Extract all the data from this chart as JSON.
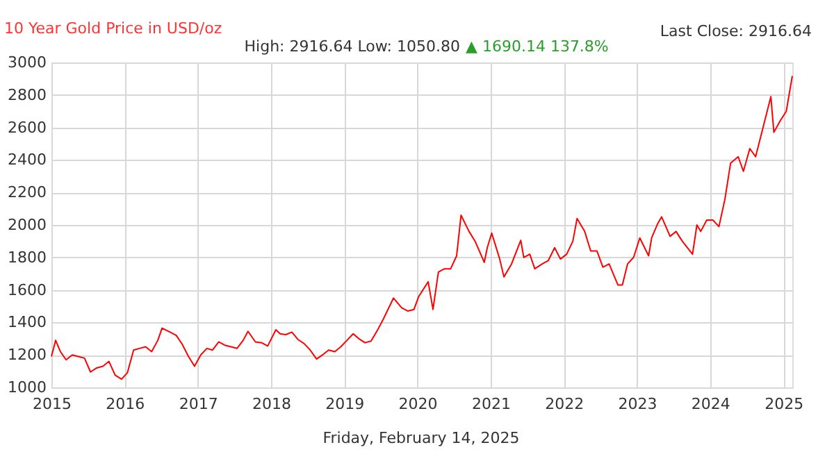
{
  "chart_data": {
    "type": "line",
    "title": "10 Year Gold Price in USD/oz",
    "annotations": [
      "Last Close: 2916.64",
      "High: 2916.64 Low: 1050.80",
      "▲ 1690.14 137.8%",
      "Friday, February 14, 2025"
    ],
    "x": [
      "2015-01-01",
      "2015-01-22",
      "2015-02-15",
      "2015-03-15",
      "2015-04-15",
      "2015-05-15",
      "2015-06-15",
      "2015-07-15",
      "2015-08-15",
      "2015-09-15",
      "2015-10-15",
      "2015-11-15",
      "2015-12-17",
      "2016-01-15",
      "2016-02-15",
      "2016-03-15",
      "2016-04-15",
      "2016-05-15",
      "2016-06-15",
      "2016-07-06",
      "2016-08-15",
      "2016-09-15",
      "2016-10-15",
      "2016-11-15",
      "2016-12-15",
      "2017-01-15",
      "2017-02-15",
      "2017-03-15",
      "2017-04-15",
      "2017-05-15",
      "2017-06-15",
      "2017-07-15",
      "2017-08-15",
      "2017-09-08",
      "2017-10-15",
      "2017-11-15",
      "2017-12-15",
      "2018-01-25",
      "2018-02-15",
      "2018-03-15",
      "2018-04-15",
      "2018-05-15",
      "2018-06-15",
      "2018-07-15",
      "2018-08-16",
      "2018-09-15",
      "2018-10-15",
      "2018-11-15",
      "2018-12-15",
      "2019-01-15",
      "2019-02-15",
      "2019-03-15",
      "2019-04-15",
      "2019-05-15",
      "2019-06-15",
      "2019-07-15",
      "2019-09-04",
      "2019-10-15",
      "2019-11-15",
      "2019-12-15",
      "2020-01-08",
      "2020-02-24",
      "2020-03-19",
      "2020-04-15",
      "2020-05-15",
      "2020-06-15",
      "2020-07-15",
      "2020-08-06",
      "2020-09-15",
      "2020-10-15",
      "2020-11-30",
      "2020-12-15",
      "2021-01-06",
      "2021-02-15",
      "2021-03-08",
      "2021-04-15",
      "2021-05-31",
      "2021-06-15",
      "2021-07-15",
      "2021-08-09",
      "2021-09-15",
      "2021-10-15",
      "2021-11-16",
      "2021-12-15",
      "2022-01-15",
      "2022-02-15",
      "2022-03-08",
      "2022-04-15",
      "2022-05-15",
      "2022-06-15",
      "2022-07-15",
      "2022-08-15",
      "2022-09-28",
      "2022-10-20",
      "2022-11-15",
      "2022-12-15",
      "2023-01-15",
      "2023-02-28",
      "2023-03-15",
      "2023-04-15",
      "2023-05-04",
      "2023-06-15",
      "2023-07-15",
      "2023-08-15",
      "2023-10-05",
      "2023-10-27",
      "2023-11-15",
      "2023-12-15",
      "2024-01-15",
      "2024-02-14",
      "2024-03-15",
      "2024-04-12",
      "2024-05-20",
      "2024-06-15",
      "2024-07-17",
      "2024-08-15",
      "2024-09-15",
      "2024-10-30",
      "2024-11-14",
      "2024-12-15",
      "2025-01-15",
      "2025-02-14"
    ],
    "series": [
      {
        "color": "#ff0000",
        "values": [
          1190,
          1290,
          1220,
          1170,
          1200,
          1190,
          1180,
          1095,
          1120,
          1130,
          1160,
          1075,
          1050.8,
          1090,
          1230,
          1240,
          1250,
          1220,
          1290,
          1365,
          1340,
          1320,
          1265,
          1190,
          1130,
          1200,
          1240,
          1230,
          1280,
          1260,
          1250,
          1240,
          1290,
          1345,
          1280,
          1275,
          1255,
          1355,
          1330,
          1325,
          1340,
          1295,
          1270,
          1230,
          1175,
          1200,
          1230,
          1220,
          1250,
          1290,
          1330,
          1300,
          1275,
          1285,
          1350,
          1420,
          1550,
          1490,
          1470,
          1480,
          1560,
          1650,
          1480,
          1710,
          1730,
          1730,
          1810,
          2060,
          1960,
          1900,
          1770,
          1860,
          1950,
          1790,
          1680,
          1760,
          1905,
          1800,
          1820,
          1730,
          1760,
          1780,
          1860,
          1790,
          1820,
          1900,
          2040,
          1960,
          1840,
          1840,
          1740,
          1760,
          1630,
          1630,
          1760,
          1800,
          1920,
          1810,
          1920,
          2010,
          2050,
          1930,
          1960,
          1900,
          1820,
          2000,
          1960,
          2030,
          2030,
          1990,
          2160,
          2380,
          2420,
          2330,
          2470,
          2420,
          2570,
          2790,
          2570,
          2640,
          2700,
          2916.64
        ]
      }
    ],
    "xlim": [
      "2015-01-01",
      "2025-02-14"
    ],
    "xticks": [
      "2015",
      "2016",
      "2017",
      "2018",
      "2019",
      "2020",
      "2021",
      "2022",
      "2023",
      "2024",
      "2025"
    ],
    "ylim": [
      1000,
      3000
    ],
    "yticks": [
      1000,
      1200,
      1400,
      1600,
      1800,
      2000,
      2200,
      2400,
      2600,
      2800,
      3000
    ],
    "grid": true,
    "marker": "none",
    "line_style": "solid"
  }
}
